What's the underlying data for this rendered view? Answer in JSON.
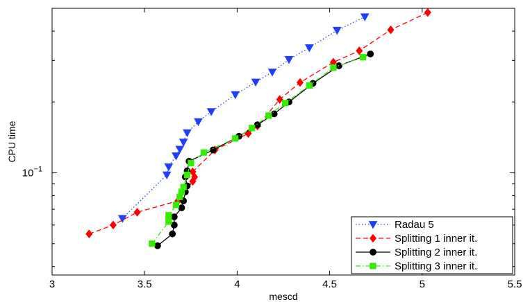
{
  "chart_data": {
    "type": "line",
    "title": "",
    "xlabel": "mescd",
    "ylabel": "CPU time",
    "xscale": "linear",
    "yscale": "log",
    "xlim": [
      3,
      5.5
    ],
    "ylim": [
      0.0368,
      0.5
    ],
    "x_ticks": [
      3,
      3.5,
      4,
      4.5,
      5,
      5.5
    ],
    "x_tick_labels": [
      "3",
      "3.5",
      "4",
      "4.5",
      "5",
      "5.5"
    ],
    "y_major_tick": 0.1,
    "y_major_tick_label_base": "10",
    "y_major_tick_label_exp": "−1",
    "grid": false,
    "legend_position": "bottom-right",
    "series": [
      {
        "name": "Radau 5",
        "color": "#1f3fff",
        "line_style": "dotted",
        "marker": "triangle-down",
        "x": [
          3.38,
          3.62,
          3.63,
          3.67,
          3.69,
          3.71,
          3.73,
          3.79,
          3.86,
          3.99,
          4.1,
          4.19,
          4.28,
          4.39,
          4.54,
          4.69
        ],
        "y": [
          0.064,
          0.098,
          0.106,
          0.118,
          0.126,
          0.135,
          0.148,
          0.165,
          0.182,
          0.215,
          0.243,
          0.268,
          0.303,
          0.34,
          0.403,
          0.46
        ]
      },
      {
        "name": "Splitting 1 inner it.",
        "color": "#ff0000",
        "line_style": "dashed",
        "marker": "diamond",
        "x": [
          3.2,
          3.33,
          3.46,
          3.68,
          3.76,
          3.77,
          3.76,
          3.88,
          4.06,
          4.11,
          4.23,
          4.34,
          4.52,
          4.66,
          4.83,
          5.03
        ],
        "y": [
          0.055,
          0.06,
          0.068,
          0.076,
          0.092,
          0.096,
          0.101,
          0.125,
          0.147,
          0.158,
          0.205,
          0.242,
          0.295,
          0.33,
          0.405,
          0.48
        ]
      },
      {
        "name": "Splitting 2 inner it.",
        "color": "#000000",
        "line_style": "solid",
        "marker": "circle",
        "x": [
          3.57,
          3.65,
          3.66,
          3.66,
          3.7,
          3.71,
          3.72,
          3.73,
          3.72,
          3.73,
          3.74,
          3.87,
          4.01,
          4.11,
          4.2,
          4.28,
          4.41,
          4.55,
          4.72
        ],
        "y": [
          0.049,
          0.055,
          0.06,
          0.065,
          0.071,
          0.076,
          0.083,
          0.088,
          0.096,
          0.102,
          0.112,
          0.125,
          0.143,
          0.16,
          0.178,
          0.2,
          0.24,
          0.285,
          0.32
        ]
      },
      {
        "name": "Splitting 3 inner it.",
        "color": "#33ee00",
        "line_style": "dashdot",
        "marker": "square",
        "x": [
          3.54,
          3.63,
          3.63,
          3.67,
          3.69,
          3.7,
          3.71,
          3.73,
          3.75,
          3.82,
          3.99,
          4.08,
          4.17,
          4.26,
          4.39,
          4.52,
          4.68
        ],
        "y": [
          0.05,
          0.062,
          0.066,
          0.073,
          0.079,
          0.083,
          0.087,
          0.098,
          0.11,
          0.122,
          0.14,
          0.155,
          0.175,
          0.198,
          0.235,
          0.28,
          0.31
        ]
      }
    ]
  }
}
